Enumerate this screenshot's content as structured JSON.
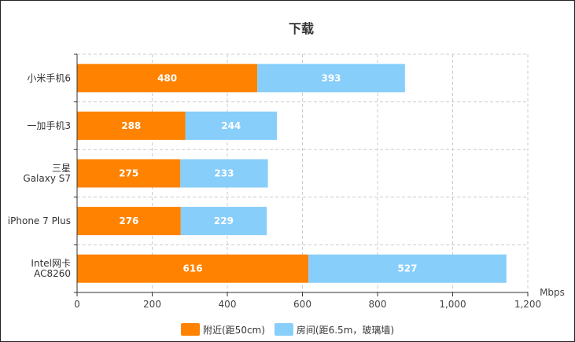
{
  "chart_data": {
    "type": "bar",
    "orientation": "horizontal",
    "stacked": true,
    "title": "下载",
    "categories": [
      [
        "小米手机6"
      ],
      [
        "一加手机3"
      ],
      [
        "三星",
        "Galaxy S7"
      ],
      [
        "iPhone 7 Plus"
      ],
      [
        "Intel网卡",
        "AC8260"
      ]
    ],
    "series": [
      {
        "name": "附近(距50cm)",
        "color": "#FF8200",
        "values": [
          480,
          288,
          275,
          276,
          616
        ]
      },
      {
        "name": "房间(距6.5m，玻璃墙)",
        "color": "#87CEFA",
        "values": [
          393,
          244,
          233,
          229,
          527
        ]
      }
    ],
    "xlabel": "Mbps",
    "xlim": [
      0,
      1200
    ],
    "xticks": [
      "0",
      "200",
      "400",
      "600",
      "800",
      "1,000",
      "1,200"
    ],
    "xtick_values": [
      0,
      200,
      400,
      600,
      800,
      1000,
      1200
    ],
    "grid": true,
    "legend_position": "bottom-center"
  }
}
